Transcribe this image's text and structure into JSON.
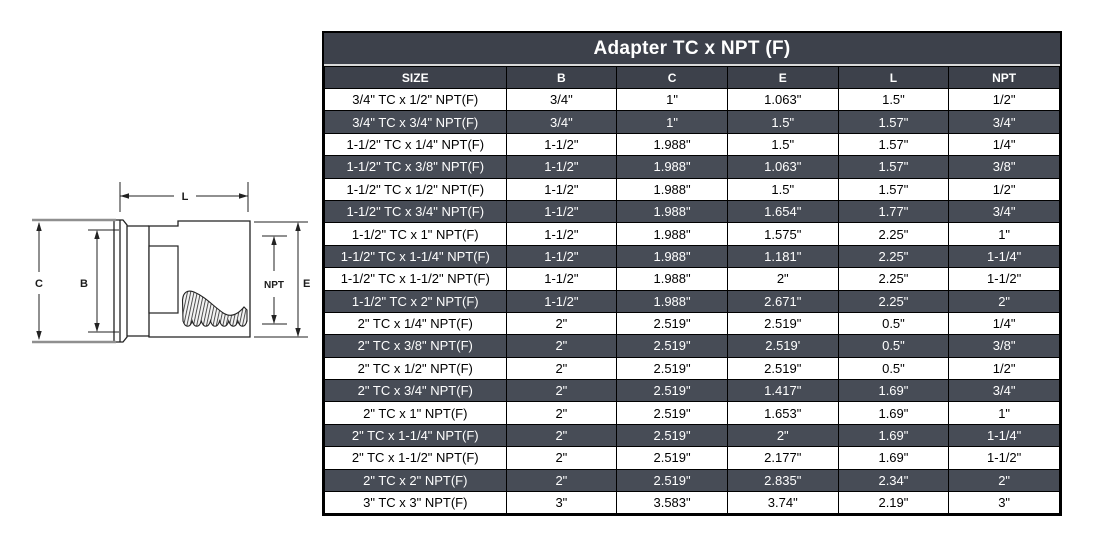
{
  "title": "Adapter TC x NPT (F)",
  "diagram": {
    "labels": {
      "L": "L",
      "C": "C",
      "B": "B",
      "NPT": "NPT",
      "E": "E"
    }
  },
  "table": {
    "columns": [
      "SIZE",
      "B",
      "C",
      "E",
      "L",
      "NPT"
    ],
    "rows": [
      [
        "3/4\" TC x 1/2\" NPT(F)",
        "3/4\"",
        "1\"",
        "1.063\"",
        "1.5\"",
        "1/2\""
      ],
      [
        "3/4\" TC x 3/4\" NPT(F)",
        "3/4\"",
        "1\"",
        "1.5\"",
        "1.57\"",
        "3/4\""
      ],
      [
        "1-1/2\" TC x 1/4\" NPT(F)",
        "1-1/2\"",
        "1.988\"",
        "1.5\"",
        "1.57\"",
        "1/4\""
      ],
      [
        "1-1/2\" TC x 3/8\" NPT(F)",
        "1-1/2\"",
        "1.988\"",
        "1.063\"",
        "1.57\"",
        "3/8\""
      ],
      [
        "1-1/2\" TC x 1/2\" NPT(F)",
        "1-1/2\"",
        "1.988\"",
        "1.5\"",
        "1.57\"",
        "1/2\""
      ],
      [
        "1-1/2\" TC x 3/4\" NPT(F)",
        "1-1/2\"",
        "1.988\"",
        "1.654\"",
        "1.77\"",
        "3/4\""
      ],
      [
        "1-1/2\" TC x 1\" NPT(F)",
        "1-1/2\"",
        "1.988\"",
        "1.575\"",
        "2.25\"",
        "1\""
      ],
      [
        "1-1/2\" TC x 1-1/4\" NPT(F)",
        "1-1/2\"",
        "1.988\"",
        "1.181\"",
        "2.25\"",
        "1-1/4\""
      ],
      [
        "1-1/2\" TC x 1-1/2\" NPT(F)",
        "1-1/2\"",
        "1.988\"",
        "2\"",
        "2.25\"",
        "1-1/2\""
      ],
      [
        "1-1/2\" TC x 2\" NPT(F)",
        "1-1/2\"",
        "1.988\"",
        "2.671\"",
        "2.25\"",
        "2\""
      ],
      [
        "2\" TC x 1/4\" NPT(F)",
        "2\"",
        "2.519\"",
        "2.519\"",
        "0.5\"",
        "1/4\""
      ],
      [
        "2\" TC x 3/8\" NPT(F)",
        "2\"",
        "2.519\"",
        "2.519'",
        "0.5\"",
        "3/8\""
      ],
      [
        "2\" TC x 1/2\" NPT(F)",
        "2\"",
        "2.519\"",
        "2.519\"",
        "0.5\"",
        "1/2\""
      ],
      [
        "2\" TC x 3/4\" NPT(F)",
        "2\"",
        "2.519\"",
        "1.417\"",
        "1.69\"",
        "3/4\""
      ],
      [
        "2\" TC x 1\" NPT(F)",
        "2\"",
        "2.519\"",
        "1.653\"",
        "1.69\"",
        "1\""
      ],
      [
        "2\" TC x 1-1/4\" NPT(F)",
        "2\"",
        "2.519\"",
        "2\"",
        "1.69\"",
        "1-1/4\""
      ],
      [
        "2\" TC x 1-1/2\" NPT(F)",
        "2\"",
        "2.519\"",
        "2.177\"",
        "1.69\"",
        "1-1/2\""
      ],
      [
        "2\" TC x 2\" NPT(F)",
        "2\"",
        "2.519\"",
        "2.835\"",
        "2.34\"",
        "2\""
      ],
      [
        "3\" TC x 3\" NPT(F)",
        "3\"",
        "3.583\"",
        "3.74\"",
        "2.19\"",
        "3\""
      ]
    ]
  },
  "colors": {
    "header_bg": "#3d414b",
    "stripe_bg": "#474c56",
    "row_bg": "#ffffff",
    "border": "#000000",
    "text_light": "#ffffff",
    "text_dark": "#000000",
    "witness_gray": "#8f8f8f"
  }
}
